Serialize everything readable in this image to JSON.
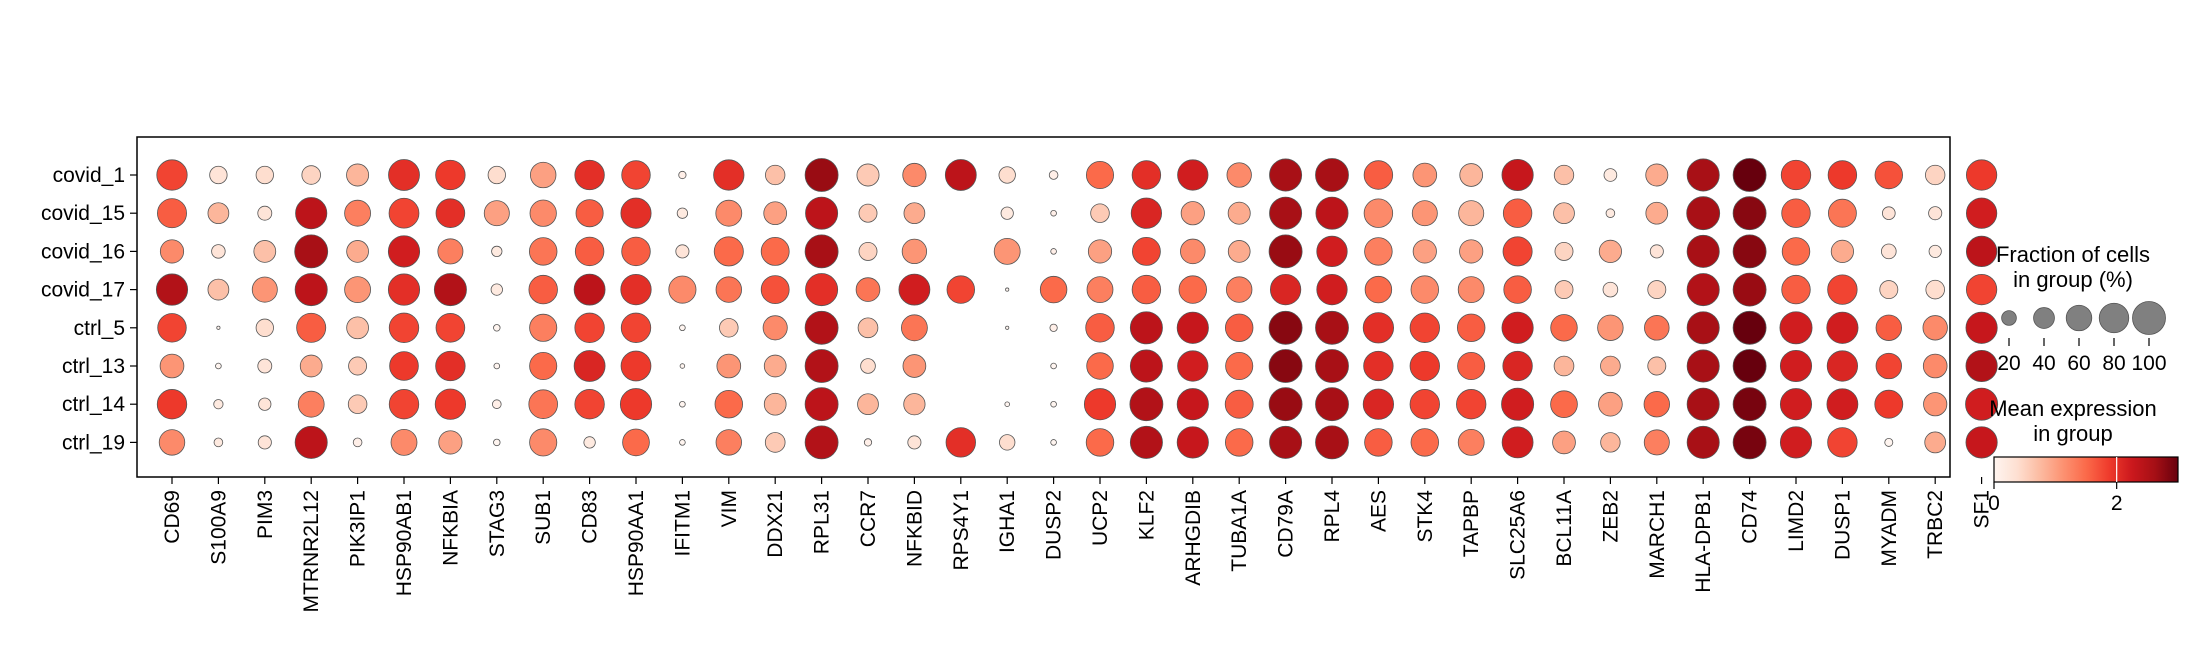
{
  "chart_data": {
    "type": "dotplot",
    "genes": [
      "CD69",
      "S100A9",
      "PIM3",
      "MTRNR2L12",
      "PIK3IP1",
      "HSP90AB1",
      "NFKBIA",
      "STAG3",
      "SUB1",
      "CD83",
      "HSP90AA1",
      "IFITM1",
      "VIM",
      "DDX21",
      "RPL31",
      "CCR7",
      "NFKBID",
      "RPS4Y1",
      "IGHA1",
      "DUSP2",
      "UCP2",
      "KLF2",
      "ARHGDIB",
      "TUBA1A",
      "CD79A",
      "RPL4",
      "AES",
      "STK4",
      "TAPBP",
      "SLC25A6",
      "BCL11A",
      "ZEB2",
      "MARCH1",
      "HLA-DPB1",
      "CD74",
      "LIMD2",
      "DUSP1",
      "MYADM",
      "TRBC2",
      "SF1"
    ],
    "groups": [
      "covid_1",
      "covid_15",
      "covid_16",
      "covid_17",
      "ctrl_5",
      "ctrl_13",
      "ctrl_14",
      "ctrl_19"
    ],
    "fraction": [
      [
        85,
        28,
        28,
        32,
        45,
        88,
        80,
        28,
        60,
        80,
        75,
        5,
        85,
        35,
        100,
        45,
        50,
        88,
        25,
        7,
        68,
        75,
        85,
        55,
        95,
        100,
        75,
        52,
        48,
        90,
        35,
        15,
        45,
        95,
        100,
        80,
        75,
        70,
        35,
        85
      ],
      [
        78,
        40,
        18,
        90,
        62,
        82,
        76,
        58,
        64,
        68,
        84,
        10,
        62,
        48,
        95,
        30,
        40,
        0,
        14,
        3,
        32,
        85,
        50,
        45,
        95,
        95,
        75,
        58,
        58,
        75,
        40,
        7,
        44,
        100,
        100,
        75,
        72,
        15,
        16,
        85
      ],
      [
        50,
        17,
        44,
        100,
        44,
        90,
        58,
        10,
        70,
        75,
        75,
        16,
        78,
        72,
        100,
        30,
        55,
        0,
        62,
        3,
        50,
        72,
        56,
        44,
        100,
        85,
        70,
        50,
        50,
        78,
        30,
        46,
        16,
        95,
        100,
        70,
        46,
        20,
        14,
        85
      ],
      [
        90,
        40,
        58,
        95,
        62,
        90,
        95,
        12,
        75,
        88,
        85,
        68,
        60,
        72,
        95,
        52,
        88,
        70,
        1,
        65,
        62,
        75,
        70,
        60,
        85,
        85,
        65,
        70,
        62,
        70,
        30,
        20,
        30,
        95,
        100,
        75,
        80,
        30,
        32,
        85
      ],
      [
        75,
        1,
        28,
        78,
        44,
        80,
        76,
        4,
        68,
        80,
        80,
        3,
        32,
        54,
        100,
        36,
        62,
        0,
        1,
        5,
        75,
        95,
        90,
        70,
        100,
        100,
        85,
        80,
        70,
        90,
        65,
        60,
        56,
        95,
        100,
        95,
        90,
        60,
        55,
        90
      ],
      [
        52,
        3,
        18,
        44,
        30,
        76,
        80,
        3,
        68,
        88,
        82,
        2,
        52,
        44,
        100,
        20,
        48,
        0,
        0,
        3,
        65,
        95,
        85,
        68,
        100,
        100,
        80,
        80,
        68,
        80,
        36,
        36,
        30,
        95,
        100,
        90,
        85,
        60,
        52,
        90
      ],
      [
        80,
        8,
        14,
        62,
        32,
        80,
        85,
        7,
        76,
        80,
        90,
        3,
        70,
        44,
        100,
        40,
        42,
        0,
        2,
        3,
        90,
        100,
        90,
        72,
        100,
        100,
        85,
        80,
        80,
        95,
        66,
        52,
        60,
        95,
        100,
        90,
        88,
        72,
        50,
        95
      ],
      [
        60,
        7,
        16,
        95,
        7,
        62,
        50,
        4,
        68,
        12,
        66,
        3,
        60,
        36,
        100,
        5,
        16,
        80,
        22,
        3,
        70,
        95,
        90,
        70,
        95,
        100,
        70,
        70,
        62,
        88,
        48,
        35,
        58,
        95,
        100,
        90,
        80,
        6,
        40,
        90
      ]
    ],
    "mean_expression": [
      [
        1.8,
        0.3,
        0.4,
        0.5,
        0.8,
        2.0,
        1.9,
        0.4,
        1.0,
        2.0,
        1.8,
        0.1,
        2.0,
        0.7,
        2.7,
        0.6,
        1.2,
        2.4,
        0.4,
        0.1,
        1.5,
        2.0,
        2.2,
        1.2,
        2.6,
        2.6,
        1.6,
        1.1,
        0.8,
        2.3,
        0.7,
        0.2,
        0.9,
        2.6,
        3.0,
        1.8,
        1.9,
        1.7,
        0.5,
        1.9
      ],
      [
        1.6,
        0.8,
        0.3,
        2.4,
        1.3,
        1.8,
        2.0,
        1.0,
        1.2,
        1.6,
        2.0,
        0.2,
        1.2,
        1.0,
        2.4,
        0.6,
        0.9,
        0,
        0.2,
        0.1,
        0.6,
        2.1,
        1.0,
        0.9,
        2.6,
        2.4,
        1.2,
        1.1,
        0.8,
        1.6,
        0.7,
        0.2,
        0.9,
        2.6,
        2.8,
        1.6,
        1.4,
        0.3,
        0.3,
        2.2
      ],
      [
        1.2,
        0.3,
        0.7,
        2.6,
        0.9,
        2.2,
        1.3,
        0.2,
        1.4,
        1.6,
        1.6,
        0.3,
        1.5,
        1.5,
        2.6,
        0.5,
        1.1,
        0,
        1.1,
        0.1,
        1.0,
        1.8,
        1.2,
        0.9,
        2.7,
        2.2,
        1.3,
        1.0,
        1.0,
        1.8,
        0.5,
        0.9,
        0.3,
        2.6,
        2.8,
        1.5,
        0.9,
        0.3,
        0.2,
        2.4
      ],
      [
        2.5,
        0.7,
        1.1,
        2.4,
        1.1,
        2.0,
        2.5,
        0.2,
        1.6,
        2.4,
        2.0,
        1.2,
        1.4,
        1.7,
        2.0,
        1.4,
        2.2,
        1.8,
        0,
        1.5,
        1.3,
        1.6,
        1.5,
        1.3,
        2.1,
        2.2,
        1.5,
        1.2,
        1.2,
        1.6,
        0.6,
        0.3,
        0.5,
        2.5,
        2.7,
        1.6,
        1.8,
        0.5,
        0.4,
        1.8
      ],
      [
        1.8,
        0,
        0.4,
        1.6,
        0.7,
        1.8,
        1.8,
        0,
        1.3,
        1.8,
        1.8,
        0,
        0.6,
        1.2,
        2.5,
        0.7,
        1.4,
        0,
        0,
        0.1,
        1.6,
        2.4,
        2.3,
        1.6,
        2.8,
        2.6,
        2.0,
        1.8,
        1.6,
        2.2,
        1.5,
        1.1,
        1.4,
        2.6,
        3.0,
        2.2,
        2.2,
        1.6,
        1.2,
        2.3
      ],
      [
        1.1,
        0,
        0.3,
        0.9,
        0.6,
        1.9,
        2.0,
        0,
        1.5,
        2.1,
        1.9,
        0,
        1.1,
        0.9,
        2.5,
        0.4,
        1.1,
        0,
        0,
        0,
        1.5,
        2.4,
        2.2,
        1.5,
        2.8,
        2.6,
        2.0,
        1.9,
        1.6,
        2.1,
        0.8,
        0.9,
        0.7,
        2.6,
        3.0,
        2.2,
        2.1,
        1.8,
        1.2,
        2.5
      ],
      [
        1.9,
        0.2,
        0.3,
        1.3,
        0.6,
        1.8,
        1.9,
        0.1,
        1.4,
        1.8,
        1.9,
        0,
        1.5,
        0.8,
        2.4,
        0.8,
        0.8,
        0,
        0,
        0,
        1.9,
        2.5,
        2.3,
        1.6,
        2.7,
        2.6,
        2.1,
        1.8,
        1.8,
        2.2,
        1.5,
        1.0,
        1.5,
        2.6,
        2.9,
        2.2,
        2.2,
        1.9,
        1.1,
        2.2
      ],
      [
        1.2,
        0.2,
        0.3,
        2.4,
        0.1,
        1.2,
        1.0,
        0,
        1.2,
        0.2,
        1.5,
        0,
        1.3,
        0.6,
        2.5,
        0.1,
        0.3,
        2.0,
        0.4,
        0,
        1.5,
        2.5,
        2.3,
        1.5,
        2.6,
        2.6,
        1.6,
        1.5,
        1.3,
        2.2,
        1.0,
        0.8,
        1.3,
        2.6,
        2.9,
        2.2,
        1.8,
        0,
        0.9,
        2.3
      ]
    ],
    "size_legend": {
      "title_lines": [
        "Fraction of cells",
        "in group (%)"
      ],
      "values": [
        20,
        40,
        60,
        80,
        100
      ],
      "labels": [
        "20",
        "40",
        "60",
        "80",
        "100"
      ]
    },
    "color_legend": {
      "title_lines": [
        "Mean expression",
        "in group"
      ],
      "vmin": 0,
      "vmax": 3,
      "ticks": [
        0,
        2
      ],
      "tick_labels": [
        "0",
        "2"
      ],
      "colormap": "Reds"
    }
  }
}
